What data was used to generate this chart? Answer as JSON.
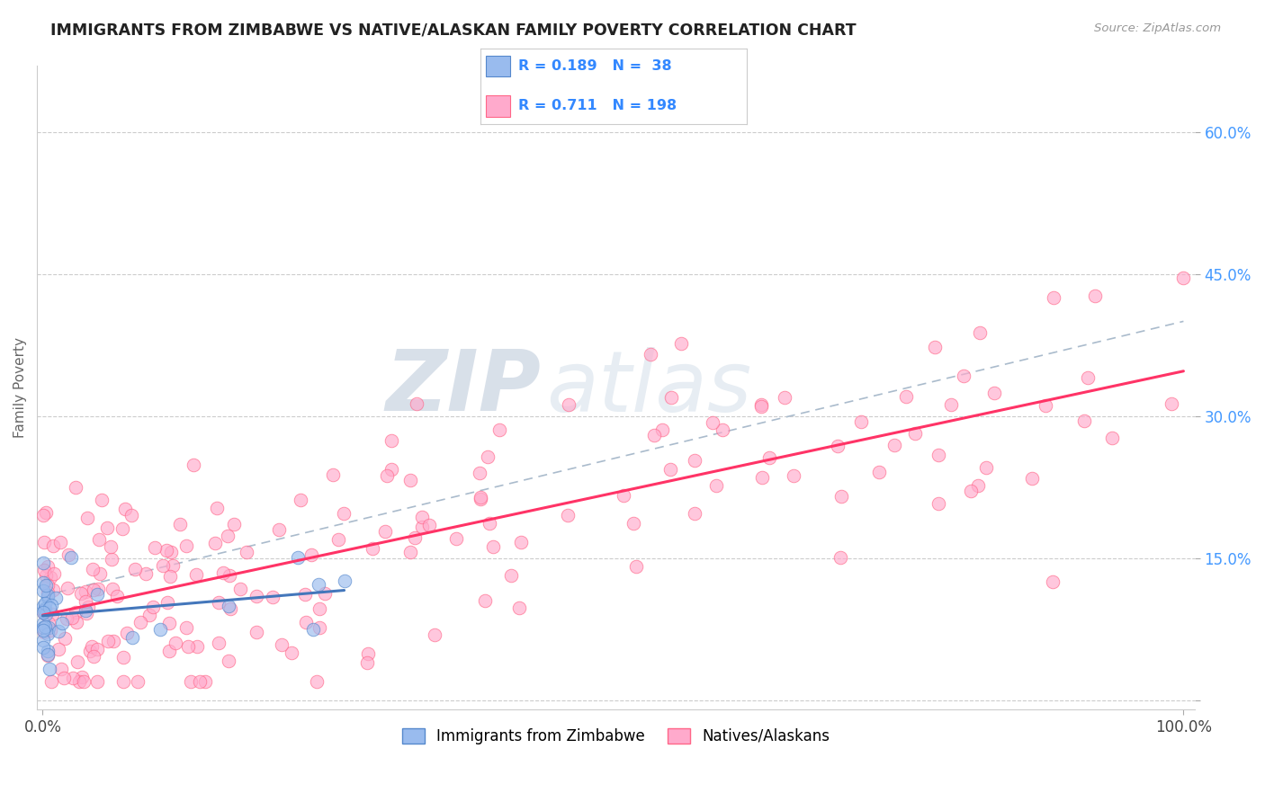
{
  "title": "IMMIGRANTS FROM ZIMBABWE VS NATIVE/ALASKAN FAMILY POVERTY CORRELATION CHART",
  "source": "Source: ZipAtlas.com",
  "ylabel": "Family Poverty",
  "legend_r1": "R = 0.189",
  "legend_n1": "N =  38",
  "legend_r2": "R = 0.711",
  "legend_n2": "N = 198",
  "legend_label1": "Immigrants from Zimbabwe",
  "legend_label2": "Natives/Alaskans",
  "watermark_zip": "ZIP",
  "watermark_atlas": "atlas",
  "color_blue_fill": "#99BBEE",
  "color_blue_edge": "#5588CC",
  "color_pink_fill": "#FFAACC",
  "color_pink_edge": "#FF6688",
  "color_line_blue": "#4477BB",
  "color_line_pink": "#FF3366",
  "color_line_dash": "#AABBCC",
  "color_title": "#222222",
  "color_source": "#999999",
  "color_ytick": "#4499FF",
  "background_color": "#FFFFFF",
  "xlim": [
    -0.005,
    1.01
  ],
  "ylim": [
    -0.01,
    0.67
  ],
  "yticks": [
    0.0,
    0.15,
    0.3,
    0.45,
    0.6
  ],
  "yticklabels": [
    "",
    "15.0%",
    "30.0%",
    "45.0%",
    "60.0%"
  ]
}
